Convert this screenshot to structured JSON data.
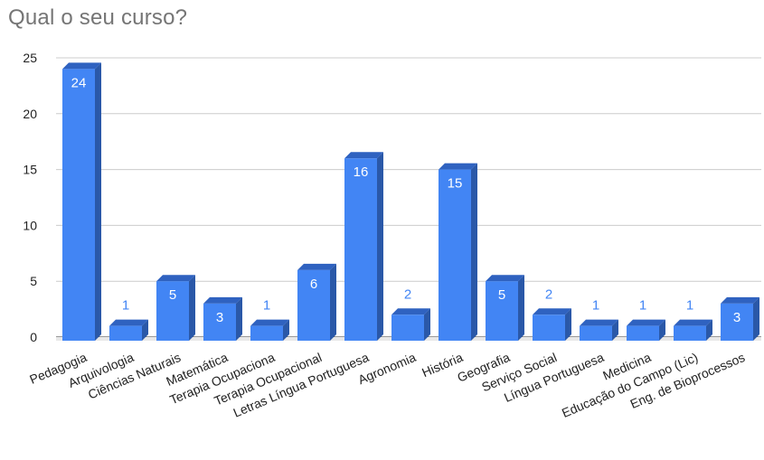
{
  "chart_data": {
    "type": "bar",
    "title": "Qual o seu curso?",
    "xlabel": "",
    "ylabel": "",
    "ylim": [
      0,
      25
    ],
    "yticks": [
      0,
      5,
      10,
      15,
      20,
      25
    ],
    "grid": true,
    "legend": "none",
    "bar_color": "#4285f4",
    "categories": [
      "Pedagogia",
      "Arquivologia",
      "Ciências Naturais",
      "Matemática",
      "Terapia Ocupaciona",
      "Terapia Ocupacional",
      "Letras Língua Portuguesa",
      "Agronomia",
      "História",
      "Geografia",
      "Serviço Social",
      "Língua Portuguesa",
      "Medicina",
      "Educação do Campo (Lic)",
      "Eng. de Bioprocessos"
    ],
    "values": [
      24,
      1,
      5,
      3,
      1,
      6,
      16,
      2,
      15,
      5,
      2,
      1,
      1,
      1,
      3
    ]
  }
}
